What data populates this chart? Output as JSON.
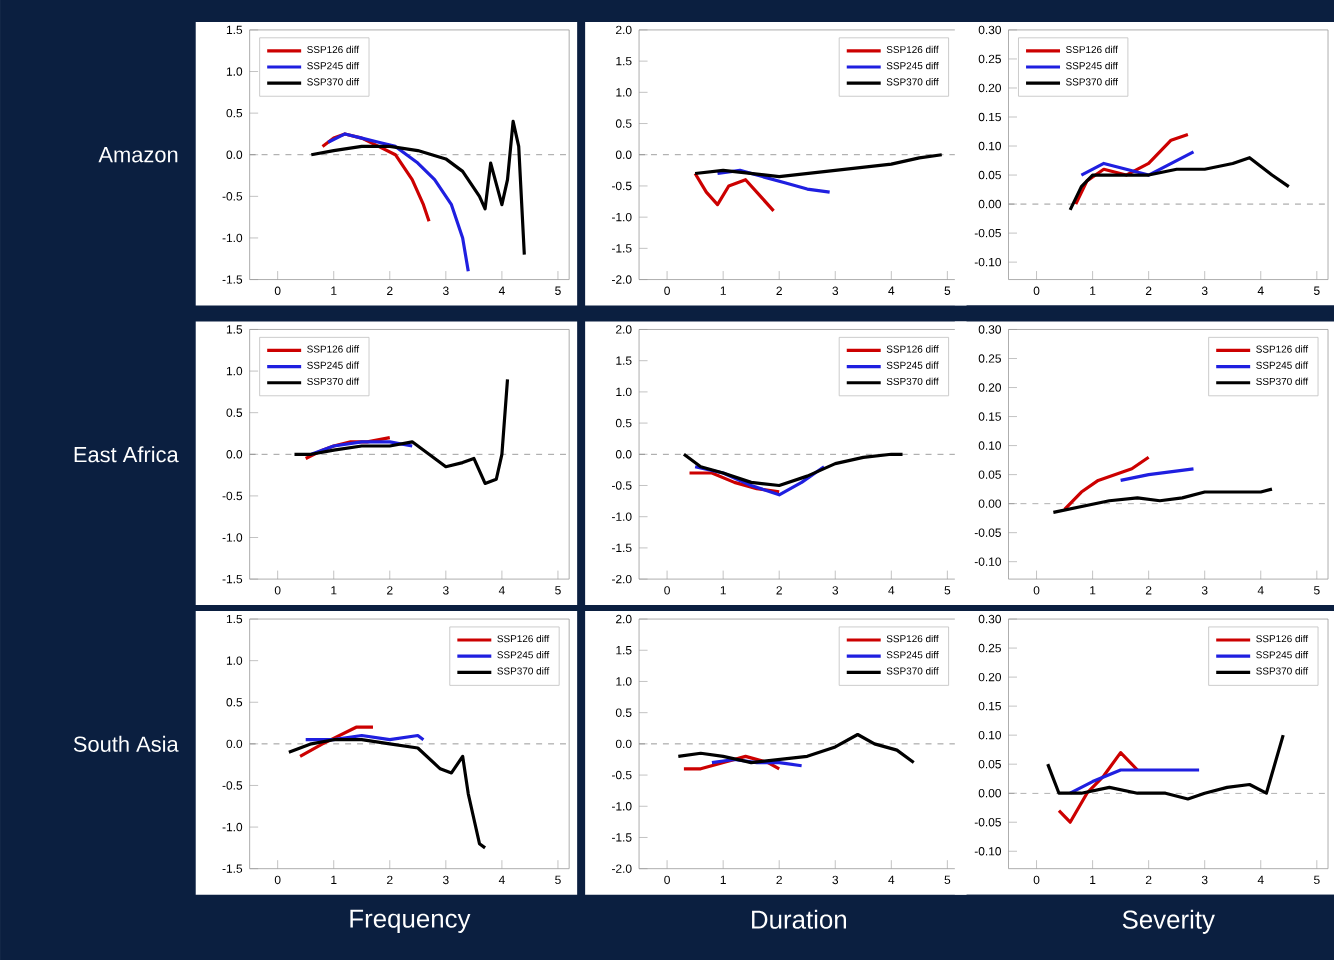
{
  "chart_data": [
    {
      "type": "line",
      "ylabel": "Amazon",
      "xlim": [
        -0.5,
        5.2
      ],
      "ylim": [
        -1.5,
        1.5
      ],
      "xticks": [
        0,
        1,
        2,
        3,
        4,
        5
      ],
      "yticks": [
        {
          "value": -1.5,
          "label": "-1.5"
        },
        {
          "value": -1.0,
          "label": "-1.0"
        },
        {
          "value": -0.5,
          "label": "-0.5"
        },
        {
          "value": 0,
          "label": "0.0"
        },
        {
          "value": 0.5,
          "label": "0.5"
        },
        {
          "value": 1.0,
          "label": "1.0"
        },
        {
          "value": 1.5,
          "label": "1.5"
        }
      ],
      "legend": "top left",
      "ref_lines": [
        {
          "axis": "y",
          "value": 0,
          "color": "#808080",
          "line_style": "dashed"
        }
      ],
      "series": [
        {
          "name": "SSP126 diff",
          "color": "#cc0000",
          "x": [
            0.8,
            1,
            1.2,
            1.5,
            1.8,
            2.1,
            2.4,
            2.6,
            2.7
          ],
          "values": [
            0.1,
            0.2,
            0.25,
            0.2,
            0.1,
            0.0,
            -0.3,
            -0.6,
            -0.8
          ]
        },
        {
          "name": "SSP245 diff",
          "color": "#1f1fe0",
          "x": [
            0.9,
            1.2,
            1.5,
            1.8,
            2.1,
            2.5,
            2.8,
            3.1,
            3.3,
            3.4
          ],
          "values": [
            0.15,
            0.25,
            0.2,
            0.15,
            0.1,
            -0.1,
            -0.3,
            -0.6,
            -1.0,
            -1.4
          ]
        },
        {
          "name": "SSP370 diff",
          "color": "#000000",
          "x": [
            0.6,
            1,
            1.5,
            2,
            2.5,
            3,
            3.3,
            3.6,
            3.7,
            3.8,
            4.0,
            4.1,
            4.2,
            4.3,
            4.4
          ],
          "values": [
            0.0,
            0.05,
            0.1,
            0.1,
            0.05,
            -0.05,
            -0.2,
            -0.5,
            -0.65,
            -0.1,
            -0.6,
            -0.3,
            0.4,
            0.1,
            -1.2
          ]
        }
      ]
    },
    {
      "type": "line",
      "xlim": [
        -0.5,
        5.2
      ],
      "ylim": [
        -2.0,
        2.0
      ],
      "xticks": [
        0,
        1,
        2,
        3,
        4,
        5
      ],
      "yticks": [
        {
          "value": -2.0,
          "label": "-2.0"
        },
        {
          "value": -1.5,
          "label": "-1.5"
        },
        {
          "value": -1.0,
          "label": "-1.0"
        },
        {
          "value": -0.5,
          "label": "-0.5"
        },
        {
          "value": 0,
          "label": "0.0"
        },
        {
          "value": 0.5,
          "label": "0.5"
        },
        {
          "value": 1.0,
          "label": "1.0"
        },
        {
          "value": 1.5,
          "label": "1.5"
        },
        {
          "value": 2.0,
          "label": "2.0"
        }
      ],
      "legend": "top right",
      "ref_lines": [
        {
          "axis": "y",
          "value": 0,
          "color": "#808080",
          "line_style": "dashed"
        }
      ],
      "series": [
        {
          "name": "SSP126 diff",
          "color": "#cc0000",
          "x": [
            0.5,
            0.7,
            0.9,
            1.1,
            1.4,
            1.7,
            1.9
          ],
          "values": [
            -0.3,
            -0.6,
            -0.8,
            -0.5,
            -0.4,
            -0.7,
            -0.9
          ]
        },
        {
          "name": "SSP245 diff",
          "color": "#1f1fe0",
          "x": [
            0.9,
            1.3,
            1.7,
            2.1,
            2.5,
            2.9
          ],
          "values": [
            -0.3,
            -0.25,
            -0.35,
            -0.45,
            -0.55,
            -0.6
          ]
        },
        {
          "name": "SSP370 diff",
          "color": "#000000",
          "x": [
            0.5,
            1,
            1.5,
            2,
            2.5,
            3,
            3.5,
            4,
            4.5,
            4.9
          ],
          "values": [
            -0.3,
            -0.25,
            -0.3,
            -0.35,
            -0.3,
            -0.25,
            -0.2,
            -0.15,
            -0.05,
            0.0
          ]
        }
      ]
    },
    {
      "type": "line",
      "xlim": [
        -0.5,
        5.2
      ],
      "ylim": [
        -0.13,
        0.3
      ],
      "xticks": [
        0,
        1,
        2,
        3,
        4,
        5
      ],
      "yticks": [
        {
          "value": -0.1,
          "label": "-0.10"
        },
        {
          "value": -0.05,
          "label": "-0.05"
        },
        {
          "value": 0,
          "label": "0.00"
        },
        {
          "value": 0.05,
          "label": "0.05"
        },
        {
          "value": 0.1,
          "label": "0.10"
        },
        {
          "value": 0.15,
          "label": "0.15"
        },
        {
          "value": 0.2,
          "label": "0.20"
        },
        {
          "value": 0.25,
          "label": "0.25"
        },
        {
          "value": 0.3,
          "label": "0.30"
        }
      ],
      "legend": "top left",
      "ref_lines": [
        {
          "axis": "y",
          "value": 0,
          "color": "#808080",
          "line_style": "dashed"
        }
      ],
      "series": [
        {
          "name": "SSP126 diff",
          "color": "#cc0000",
          "x": [
            0.7,
            0.9,
            1.2,
            1.6,
            2,
            2.4,
            2.7
          ],
          "values": [
            0.0,
            0.04,
            0.06,
            0.05,
            0.07,
            0.11,
            0.12
          ]
        },
        {
          "name": "SSP245 diff",
          "color": "#1f1fe0",
          "x": [
            0.8,
            1.2,
            1.6,
            2,
            2.4,
            2.8
          ],
          "values": [
            0.05,
            0.07,
            0.06,
            0.05,
            0.07,
            0.09
          ]
        },
        {
          "name": "SSP370 diff",
          "color": "#000000",
          "x": [
            0.6,
            0.8,
            1,
            1.5,
            2,
            2.5,
            3,
            3.5,
            3.8,
            4.2,
            4.5
          ],
          "values": [
            -0.01,
            0.03,
            0.05,
            0.05,
            0.05,
            0.06,
            0.06,
            0.07,
            0.08,
            0.05,
            0.03
          ]
        }
      ]
    },
    {
      "type": "line",
      "ylabel": "East Africa",
      "xlim": [
        -0.5,
        5.2
      ],
      "ylim": [
        -1.5,
        1.5
      ],
      "xticks": [
        0,
        1,
        2,
        3,
        4,
        5
      ],
      "yticks": [
        {
          "value": -1.5,
          "label": "-1.5"
        },
        {
          "value": -1.0,
          "label": "-1.0"
        },
        {
          "value": -0.5,
          "label": "-0.5"
        },
        {
          "value": 0,
          "label": "0.0"
        },
        {
          "value": 0.5,
          "label": "0.5"
        },
        {
          "value": 1.0,
          "label": "1.0"
        },
        {
          "value": 1.5,
          "label": "1.5"
        }
      ],
      "legend": "top left",
      "ref_lines": [
        {
          "axis": "y",
          "value": 0,
          "color": "#808080",
          "line_style": "dashed"
        }
      ],
      "series": [
        {
          "name": "SSP126 diff",
          "color": "#cc0000",
          "x": [
            0.5,
            0.8,
            1,
            1.3,
            1.6,
            2
          ],
          "values": [
            -0.05,
            0.05,
            0.1,
            0.15,
            0.15,
            0.2
          ]
        },
        {
          "name": "SSP245 diff",
          "color": "#1f1fe0",
          "x": [
            0.6,
            1,
            1.5,
            2,
            2.4
          ],
          "values": [
            0.0,
            0.1,
            0.15,
            0.15,
            0.1
          ]
        },
        {
          "name": "SSP370 diff",
          "color": "#000000",
          "x": [
            0.3,
            0.6,
            1,
            1.5,
            2,
            2.4,
            2.7,
            3,
            3.3,
            3.5,
            3.7,
            3.9,
            4.0,
            4.1
          ],
          "values": [
            0.0,
            0.0,
            0.05,
            0.1,
            0.1,
            0.15,
            0.0,
            -0.15,
            -0.1,
            -0.05,
            -0.35,
            -0.3,
            0.0,
            0.9
          ]
        }
      ]
    },
    {
      "type": "line",
      "xlim": [
        -0.5,
        5.2
      ],
      "ylim": [
        -2.0,
        2.0
      ],
      "xticks": [
        0,
        1,
        2,
        3,
        4,
        5
      ],
      "yticks": [
        {
          "value": -2.0,
          "label": "-2.0"
        },
        {
          "value": -1.5,
          "label": "-1.5"
        },
        {
          "value": -1.0,
          "label": "-1.0"
        },
        {
          "value": -0.5,
          "label": "-0.5"
        },
        {
          "value": 0,
          "label": "0.0"
        },
        {
          "value": 0.5,
          "label": "0.5"
        },
        {
          "value": 1.0,
          "label": "1.0"
        },
        {
          "value": 1.5,
          "label": "1.5"
        },
        {
          "value": 2.0,
          "label": "2.0"
        }
      ],
      "legend": "top right",
      "ref_lines": [
        {
          "axis": "y",
          "value": 0,
          "color": "#808080",
          "line_style": "dashed"
        }
      ],
      "series": [
        {
          "name": "SSP126 diff",
          "color": "#cc0000",
          "x": [
            0.4,
            0.8,
            1.2,
            1.6,
            2.0
          ],
          "values": [
            -0.3,
            -0.3,
            -0.45,
            -0.55,
            -0.6
          ]
        },
        {
          "name": "SSP245 diff",
          "color": "#1f1fe0",
          "x": [
            0.5,
            1,
            1.5,
            2,
            2.4,
            2.8
          ],
          "values": [
            -0.2,
            -0.3,
            -0.5,
            -0.65,
            -0.45,
            -0.2
          ]
        },
        {
          "name": "SSP370 diff",
          "color": "#000000",
          "x": [
            0.3,
            0.6,
            1,
            1.5,
            2,
            2.5,
            3,
            3.5,
            4,
            4.2
          ],
          "values": [
            0.0,
            -0.2,
            -0.3,
            -0.45,
            -0.5,
            -0.35,
            -0.15,
            -0.05,
            0.0,
            0.0
          ]
        }
      ]
    },
    {
      "type": "line",
      "xlim": [
        -0.5,
        5.2
      ],
      "ylim": [
        -0.13,
        0.3
      ],
      "xticks": [
        0,
        1,
        2,
        3,
        4,
        5
      ],
      "yticks": [
        {
          "value": -0.1,
          "label": "-0.10"
        },
        {
          "value": -0.05,
          "label": "-0.05"
        },
        {
          "value": 0,
          "label": "0.00"
        },
        {
          "value": 0.05,
          "label": "0.05"
        },
        {
          "value": 0.1,
          "label": "0.10"
        },
        {
          "value": 0.15,
          "label": "0.15"
        },
        {
          "value": 0.2,
          "label": "0.20"
        },
        {
          "value": 0.25,
          "label": "0.25"
        },
        {
          "value": 0.3,
          "label": "0.30"
        }
      ],
      "legend": "top right",
      "ref_lines": [
        {
          "axis": "y",
          "value": 0,
          "color": "#808080",
          "line_style": "dashed"
        }
      ],
      "series": [
        {
          "name": "SSP126 diff",
          "color": "#cc0000",
          "x": [
            0.5,
            0.8,
            1.1,
            1.4,
            1.7,
            2
          ],
          "values": [
            -0.01,
            0.02,
            0.04,
            0.05,
            0.06,
            0.08
          ]
        },
        {
          "name": "SSP245 diff",
          "color": "#1f1fe0",
          "x": [
            1.5,
            2,
            2.4,
            2.8
          ],
          "values": [
            0.04,
            0.05,
            0.055,
            0.06
          ]
        },
        {
          "name": "SSP370 diff",
          "color": "#000000",
          "x": [
            0.3,
            0.8,
            1.3,
            1.8,
            2.2,
            2.6,
            3,
            3.5,
            4,
            4.2
          ],
          "values": [
            -0.015,
            -0.005,
            0.005,
            0.01,
            0.005,
            0.01,
            0.02,
            0.02,
            0.02,
            0.025
          ]
        }
      ]
    },
    {
      "type": "line",
      "ylabel": "South Asia",
      "xlabel": "Frequency",
      "xlim": [
        -0.5,
        5.2
      ],
      "ylim": [
        -1.5,
        1.5
      ],
      "xticks": [
        0,
        1,
        2,
        3,
        4,
        5
      ],
      "yticks": [
        {
          "value": -1.5,
          "label": "-1.5"
        },
        {
          "value": -1.0,
          "label": "-1.0"
        },
        {
          "value": -0.5,
          "label": "-0.5"
        },
        {
          "value": 0,
          "label": "0.0"
        },
        {
          "value": 0.5,
          "label": "0.5"
        },
        {
          "value": 1.0,
          "label": "1.0"
        },
        {
          "value": 1.5,
          "label": "1.5"
        }
      ],
      "legend": "top right",
      "ref_lines": [
        {
          "axis": "y",
          "value": 0,
          "color": "#808080",
          "line_style": "dashed"
        }
      ],
      "series": [
        {
          "name": "SSP126 diff",
          "color": "#cc0000",
          "x": [
            0.4,
            0.8,
            1.1,
            1.4,
            1.7
          ],
          "values": [
            -0.15,
            0.0,
            0.1,
            0.2,
            0.2
          ]
        },
        {
          "name": "SSP245 diff",
          "color": "#1f1fe0",
          "x": [
            0.5,
            1,
            1.5,
            2,
            2.5,
            2.6
          ],
          "values": [
            0.05,
            0.05,
            0.1,
            0.05,
            0.1,
            0.05
          ]
        },
        {
          "name": "SSP370 diff",
          "color": "#000000",
          "x": [
            0.2,
            0.6,
            1,
            1.5,
            2,
            2.5,
            2.9,
            3.1,
            3.3,
            3.4,
            3.5,
            3.6,
            3.7
          ],
          "values": [
            -0.1,
            0.0,
            0.05,
            0.05,
            0.0,
            -0.05,
            -0.3,
            -0.35,
            -0.15,
            -0.6,
            -0.9,
            -1.2,
            -1.25
          ]
        }
      ]
    },
    {
      "type": "line",
      "xlabel": "Duration",
      "xlim": [
        -0.5,
        5.2
      ],
      "ylim": [
        -2.0,
        2.0
      ],
      "xticks": [
        0,
        1,
        2,
        3,
        4,
        5
      ],
      "yticks": [
        {
          "value": -2.0,
          "label": "-2.0"
        },
        {
          "value": -1.5,
          "label": "-1.5"
        },
        {
          "value": -1.0,
          "label": "-1.0"
        },
        {
          "value": -0.5,
          "label": "-0.5"
        },
        {
          "value": 0,
          "label": "0.0"
        },
        {
          "value": 0.5,
          "label": "0.5"
        },
        {
          "value": 1.0,
          "label": "1.0"
        },
        {
          "value": 1.5,
          "label": "1.5"
        },
        {
          "value": 2.0,
          "label": "2.0"
        }
      ],
      "legend": "top right",
      "ref_lines": [
        {
          "axis": "y",
          "value": 0,
          "color": "#808080",
          "line_style": "dashed"
        }
      ],
      "series": [
        {
          "name": "SSP126 diff",
          "color": "#cc0000",
          "x": [
            0.3,
            0.6,
            1,
            1.4,
            1.8,
            2.0
          ],
          "values": [
            -0.4,
            -0.4,
            -0.3,
            -0.2,
            -0.3,
            -0.4
          ]
        },
        {
          "name": "SSP245 diff",
          "color": "#1f1fe0",
          "x": [
            0.8,
            1.2,
            1.6,
            2,
            2.4
          ],
          "values": [
            -0.3,
            -0.25,
            -0.3,
            -0.3,
            -0.35
          ]
        },
        {
          "name": "SSP370 diff",
          "color": "#000000",
          "x": [
            0.2,
            0.6,
            1,
            1.5,
            2,
            2.5,
            3,
            3.4,
            3.7,
            4.1,
            4.4
          ],
          "values": [
            -0.2,
            -0.15,
            -0.2,
            -0.3,
            -0.25,
            -0.2,
            -0.05,
            0.15,
            0.0,
            -0.1,
            -0.3
          ]
        }
      ]
    },
    {
      "type": "line",
      "xlabel": "Severity",
      "xlim": [
        -0.5,
        5.2
      ],
      "ylim": [
        -0.13,
        0.3
      ],
      "xticks": [
        0,
        1,
        2,
        3,
        4,
        5
      ],
      "yticks": [
        {
          "value": -0.1,
          "label": "-0.10"
        },
        {
          "value": -0.05,
          "label": "-0.05"
        },
        {
          "value": 0,
          "label": "0.00"
        },
        {
          "value": 0.05,
          "label": "0.05"
        },
        {
          "value": 0.1,
          "label": "0.10"
        },
        {
          "value": 0.15,
          "label": "0.15"
        },
        {
          "value": 0.2,
          "label": "0.20"
        },
        {
          "value": 0.25,
          "label": "0.25"
        },
        {
          "value": 0.3,
          "label": "0.30"
        }
      ],
      "legend": "top right",
      "ref_lines": [
        {
          "axis": "y",
          "value": 0,
          "color": "#808080",
          "line_style": "dashed"
        }
      ],
      "series": [
        {
          "name": "SSP126 diff",
          "color": "#cc0000",
          "x": [
            0.4,
            0.6,
            0.9,
            1.2,
            1.5,
            1.8
          ],
          "values": [
            -0.03,
            -0.05,
            0.0,
            0.03,
            0.07,
            0.04
          ]
        },
        {
          "name": "SSP245 diff",
          "color": "#1f1fe0",
          "x": [
            0.6,
            1,
            1.5,
            2,
            2.5,
            2.9
          ],
          "values": [
            0.0,
            0.02,
            0.04,
            0.04,
            0.04,
            0.04
          ]
        },
        {
          "name": "SSP370 diff",
          "color": "#000000",
          "x": [
            0.2,
            0.4,
            0.8,
            1.3,
            1.8,
            2.3,
            2.7,
            3,
            3.4,
            3.8,
            4.1,
            4.4
          ],
          "values": [
            0.05,
            0.0,
            0.0,
            0.01,
            0.0,
            0.0,
            -0.01,
            0.0,
            0.01,
            0.015,
            0.0,
            0.1
          ]
        }
      ]
    }
  ]
}
